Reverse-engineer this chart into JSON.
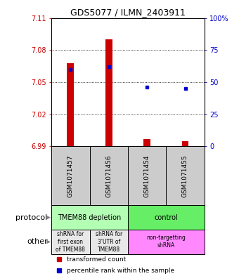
{
  "title": "GDS5077 / ILMN_2403911",
  "samples": [
    "GSM1071457",
    "GSM1071456",
    "GSM1071454",
    "GSM1071455"
  ],
  "transformed_counts": [
    7.068,
    7.09,
    6.997,
    6.995
  ],
  "percentile_ranks": [
    60,
    62,
    46,
    45
  ],
  "ylim_left": [
    6.99,
    7.11
  ],
  "ylim_right": [
    0,
    100
  ],
  "yticks_left": [
    6.99,
    7.02,
    7.05,
    7.08,
    7.11
  ],
  "yticks_right": [
    0,
    25,
    50,
    75,
    100
  ],
  "ytick_labels_left": [
    "6.99",
    "7.02",
    "7.05",
    "7.08",
    "7.11"
  ],
  "ytick_labels_right": [
    "0",
    "25",
    "50",
    "75",
    "100%"
  ],
  "hlines": [
    7.02,
    7.05,
    7.08
  ],
  "bar_color": "#cc0000",
  "dot_color": "#0000cc",
  "bar_bottom": 6.99,
  "protocol_colors": [
    "#b3ffb3",
    "#66ee66"
  ],
  "other_colors_left": "#e8e8e8",
  "other_color_right": "#ff88ff",
  "sample_box_color": "#cccccc"
}
